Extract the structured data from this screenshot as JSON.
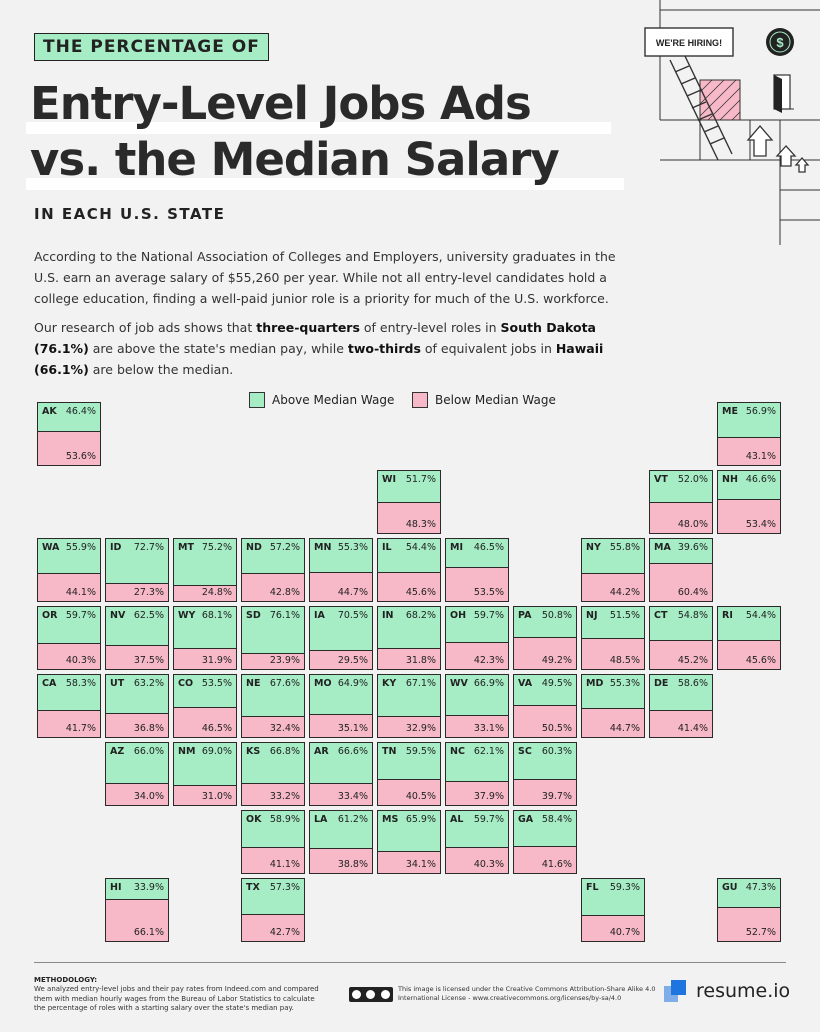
{
  "header": {
    "kicker": "THE PERCENTAGE OF",
    "title_line1": "Entry-Level Jobs Ads",
    "title_line2": "vs. the Median Salary",
    "subtitle": "IN EACH U.S. STATE",
    "hiring_sign": "WE'RE HIRING!",
    "dollar_symbol": "$"
  },
  "intro": {
    "p1": "According to the National Association of Colleges and Employers, university graduates in the U.S. earn an average salary of $55,260 per year. While not all entry-level candidates hold a college education, finding a well-paid junior role is a priority for much of the U.S. workforce.",
    "p2_a": "Our research of job ads shows that ",
    "p2_b": "three-quarters",
    "p2_c": " of entry-level roles in ",
    "p2_d": "South Dakota (76.1%)",
    "p2_e": " are above the state's median pay, while ",
    "p2_f": "two-thirds",
    "p2_g": " of equivalent jobs in ",
    "p2_h": "Hawaii (66.1%)",
    "p2_i": " are below the median."
  },
  "colors": {
    "above": "#a6edc6",
    "below": "#f7b9c8",
    "border": "#2a2a2a"
  },
  "chart_data": {
    "type": "table",
    "title": "The Percentage of Entry-Level Jobs Ads vs. the Median Salary in Each U.S. State",
    "legend": [
      "Above Median Wage",
      "Below Median Wage"
    ],
    "legend_position": "top-center",
    "series": [
      "above",
      "below"
    ],
    "states": [
      {
        "code": "AK",
        "above": 46.4,
        "below": 53.6,
        "row": 0,
        "col": 0,
        "above_label": "46.4%",
        "below_label": "53.6%"
      },
      {
        "code": "ME",
        "above": 56.9,
        "below": 43.1,
        "row": 0,
        "col": 10,
        "above_label": "56.9%",
        "below_label": "43.1%"
      },
      {
        "code": "WI",
        "above": 51.7,
        "below": 48.3,
        "row": 1,
        "col": 5,
        "above_label": "51.7%",
        "below_label": "48.3%"
      },
      {
        "code": "VT",
        "above": 52.0,
        "below": 48.0,
        "row": 1,
        "col": 9,
        "above_label": "52.0%",
        "below_label": "48.0%"
      },
      {
        "code": "NH",
        "above": 46.6,
        "below": 53.4,
        "row": 1,
        "col": 10,
        "above_label": "46.6%",
        "below_label": "53.4%"
      },
      {
        "code": "WA",
        "above": 55.9,
        "below": 44.1,
        "row": 2,
        "col": 0,
        "above_label": "55.9%",
        "below_label": "44.1%"
      },
      {
        "code": "ID",
        "above": 72.7,
        "below": 27.3,
        "row": 2,
        "col": 1,
        "above_label": "72.7%",
        "below_label": "27.3%"
      },
      {
        "code": "MT",
        "above": 75.2,
        "below": 24.8,
        "row": 2,
        "col": 2,
        "above_label": "75.2%",
        "below_label": "24.8%"
      },
      {
        "code": "ND",
        "above": 57.2,
        "below": 42.8,
        "row": 2,
        "col": 3,
        "above_label": "57.2%",
        "below_label": "42.8%"
      },
      {
        "code": "MN",
        "above": 55.3,
        "below": 44.7,
        "row": 2,
        "col": 4,
        "above_label": "55.3%",
        "below_label": "44.7%"
      },
      {
        "code": "IL",
        "above": 54.4,
        "below": 45.6,
        "row": 2,
        "col": 5,
        "above_label": "54.4%",
        "below_label": "45.6%"
      },
      {
        "code": "MI",
        "above": 46.5,
        "below": 53.5,
        "row": 2,
        "col": 6,
        "above_label": "46.5%",
        "below_label": "53.5%"
      },
      {
        "code": "NY",
        "above": 55.8,
        "below": 44.2,
        "row": 2,
        "col": 8,
        "above_label": "55.8%",
        "below_label": "44.2%"
      },
      {
        "code": "MA",
        "above": 39.6,
        "below": 60.4,
        "row": 2,
        "col": 9,
        "above_label": "39.6%",
        "below_label": "60.4%"
      },
      {
        "code": "OR",
        "above": 59.7,
        "below": 40.3,
        "row": 3,
        "col": 0,
        "above_label": "59.7%",
        "below_label": "40.3%"
      },
      {
        "code": "NV",
        "above": 62.5,
        "below": 37.5,
        "row": 3,
        "col": 1,
        "above_label": "62.5%",
        "below_label": "37.5%"
      },
      {
        "code": "WY",
        "above": 68.1,
        "below": 31.9,
        "row": 3,
        "col": 2,
        "above_label": "68.1%",
        "below_label": "31.9%"
      },
      {
        "code": "SD",
        "above": 76.1,
        "below": 23.9,
        "row": 3,
        "col": 3,
        "above_label": "76.1%",
        "below_label": "23.9%"
      },
      {
        "code": "IA",
        "above": 70.5,
        "below": 29.5,
        "row": 3,
        "col": 4,
        "above_label": "70.5%",
        "below_label": "29.5%"
      },
      {
        "code": "IN",
        "above": 68.2,
        "below": 31.8,
        "row": 3,
        "col": 5,
        "above_label": "68.2%",
        "below_label": "31.8%"
      },
      {
        "code": "OH",
        "above": 59.7,
        "below": 42.3,
        "row": 3,
        "col": 6,
        "above_label": "59.7%",
        "below_label": "42.3%"
      },
      {
        "code": "PA",
        "above": 50.8,
        "below": 49.2,
        "row": 3,
        "col": 7,
        "above_label": "50.8%",
        "below_label": "49.2%"
      },
      {
        "code": "NJ",
        "above": 51.5,
        "below": 48.5,
        "row": 3,
        "col": 8,
        "above_label": "51.5%",
        "below_label": "48.5%"
      },
      {
        "code": "CT",
        "above": 54.8,
        "below": 45.2,
        "row": 3,
        "col": 9,
        "above_label": "54.8%",
        "below_label": "45.2%"
      },
      {
        "code": "RI",
        "above": 54.4,
        "below": 45.6,
        "row": 3,
        "col": 10,
        "above_label": "54.4%",
        "below_label": "45.6%"
      },
      {
        "code": "CA",
        "above": 58.3,
        "below": 41.7,
        "row": 4,
        "col": 0,
        "above_label": "58.3%",
        "below_label": "41.7%"
      },
      {
        "code": "UT",
        "above": 63.2,
        "below": 36.8,
        "row": 4,
        "col": 1,
        "above_label": "63.2%",
        "below_label": "36.8%"
      },
      {
        "code": "CO",
        "above": 53.5,
        "below": 46.5,
        "row": 4,
        "col": 2,
        "above_label": "53.5%",
        "below_label": "46.5%"
      },
      {
        "code": "NE",
        "above": 67.6,
        "below": 32.4,
        "row": 4,
        "col": 3,
        "above_label": "67.6%",
        "below_label": "32.4%"
      },
      {
        "code": "MO",
        "above": 64.9,
        "below": 35.1,
        "row": 4,
        "col": 4,
        "above_label": "64.9%",
        "below_label": "35.1%"
      },
      {
        "code": "KY",
        "above": 67.1,
        "below": 32.9,
        "row": 4,
        "col": 5,
        "above_label": "67.1%",
        "below_label": "32.9%"
      },
      {
        "code": "WV",
        "above": 66.9,
        "below": 33.1,
        "row": 4,
        "col": 6,
        "above_label": "66.9%",
        "below_label": "33.1%"
      },
      {
        "code": "VA",
        "above": 49.5,
        "below": 50.5,
        "row": 4,
        "col": 7,
        "above_label": "49.5%",
        "below_label": "50.5%"
      },
      {
        "code": "MD",
        "above": 55.3,
        "below": 44.7,
        "row": 4,
        "col": 8,
        "above_label": "55.3%",
        "below_label": "44.7%"
      },
      {
        "code": "DE",
        "above": 58.6,
        "below": 41.4,
        "row": 4,
        "col": 9,
        "above_label": "58.6%",
        "below_label": "41.4%"
      },
      {
        "code": "AZ",
        "above": 66.0,
        "below": 34.0,
        "row": 5,
        "col": 1,
        "above_label": "66.0%",
        "below_label": "34.0%"
      },
      {
        "code": "NM",
        "above": 69.0,
        "below": 31.0,
        "row": 5,
        "col": 2,
        "above_label": "69.0%",
        "below_label": "31.0%"
      },
      {
        "code": "KS",
        "above": 66.8,
        "below": 33.2,
        "row": 5,
        "col": 3,
        "above_label": "66.8%",
        "below_label": "33.2%"
      },
      {
        "code": "AR",
        "above": 66.6,
        "below": 33.4,
        "row": 5,
        "col": 4,
        "above_label": "66.6%",
        "below_label": "33.4%"
      },
      {
        "code": "TN",
        "above": 59.5,
        "below": 40.5,
        "row": 5,
        "col": 5,
        "above_label": "59.5%",
        "below_label": "40.5%"
      },
      {
        "code": "NC",
        "above": 62.1,
        "below": 37.9,
        "row": 5,
        "col": 6,
        "above_label": "62.1%",
        "below_label": "37.9%"
      },
      {
        "code": "SC",
        "above": 60.3,
        "below": 39.7,
        "row": 5,
        "col": 7,
        "above_label": "60.3%",
        "below_label": "39.7%"
      },
      {
        "code": "OK",
        "above": 58.9,
        "below": 41.1,
        "row": 6,
        "col": 3,
        "above_label": "58.9%",
        "below_label": "41.1%"
      },
      {
        "code": "LA",
        "above": 61.2,
        "below": 38.8,
        "row": 6,
        "col": 4,
        "above_label": "61.2%",
        "below_label": "38.8%"
      },
      {
        "code": "MS",
        "above": 65.9,
        "below": 34.1,
        "row": 6,
        "col": 5,
        "above_label": "65.9%",
        "below_label": "34.1%"
      },
      {
        "code": "AL",
        "above": 59.7,
        "below": 40.3,
        "row": 6,
        "col": 6,
        "above_label": "59.7%",
        "below_label": "40.3%"
      },
      {
        "code": "GA",
        "above": 58.4,
        "below": 41.6,
        "row": 6,
        "col": 7,
        "above_label": "58.4%",
        "below_label": "41.6%"
      },
      {
        "code": "HI",
        "above": 33.9,
        "below": 66.1,
        "row": 7,
        "col": 1,
        "above_label": "33.9%",
        "below_label": "66.1%"
      },
      {
        "code": "TX",
        "above": 57.3,
        "below": 42.7,
        "row": 7,
        "col": 3,
        "above_label": "57.3%",
        "below_label": "42.7%"
      },
      {
        "code": "FL",
        "above": 59.3,
        "below": 40.7,
        "row": 7,
        "col": 8,
        "above_label": "59.3%",
        "below_label": "40.7%"
      },
      {
        "code": "GU",
        "above": 47.3,
        "below": 52.7,
        "row": 7,
        "col": 10,
        "above_label": "47.3%",
        "below_label": "52.7%"
      }
    ]
  },
  "footer": {
    "methodology_title": "METHODOLOGY:",
    "methodology_text": "We analyzed entry-level jobs and their pay rates from Indeed.com and compared them with median hourly wages from the Bureau of Labor Statistics to calculate the percentage of roles with a starting salary over the state's median pay.",
    "license_text": "This image is licensed under the Creative Commons Attribution-Share Alike 4.0 International License - www.creativecommons.org/licenses/by-sa/4.0",
    "brand": "resume.io"
  }
}
